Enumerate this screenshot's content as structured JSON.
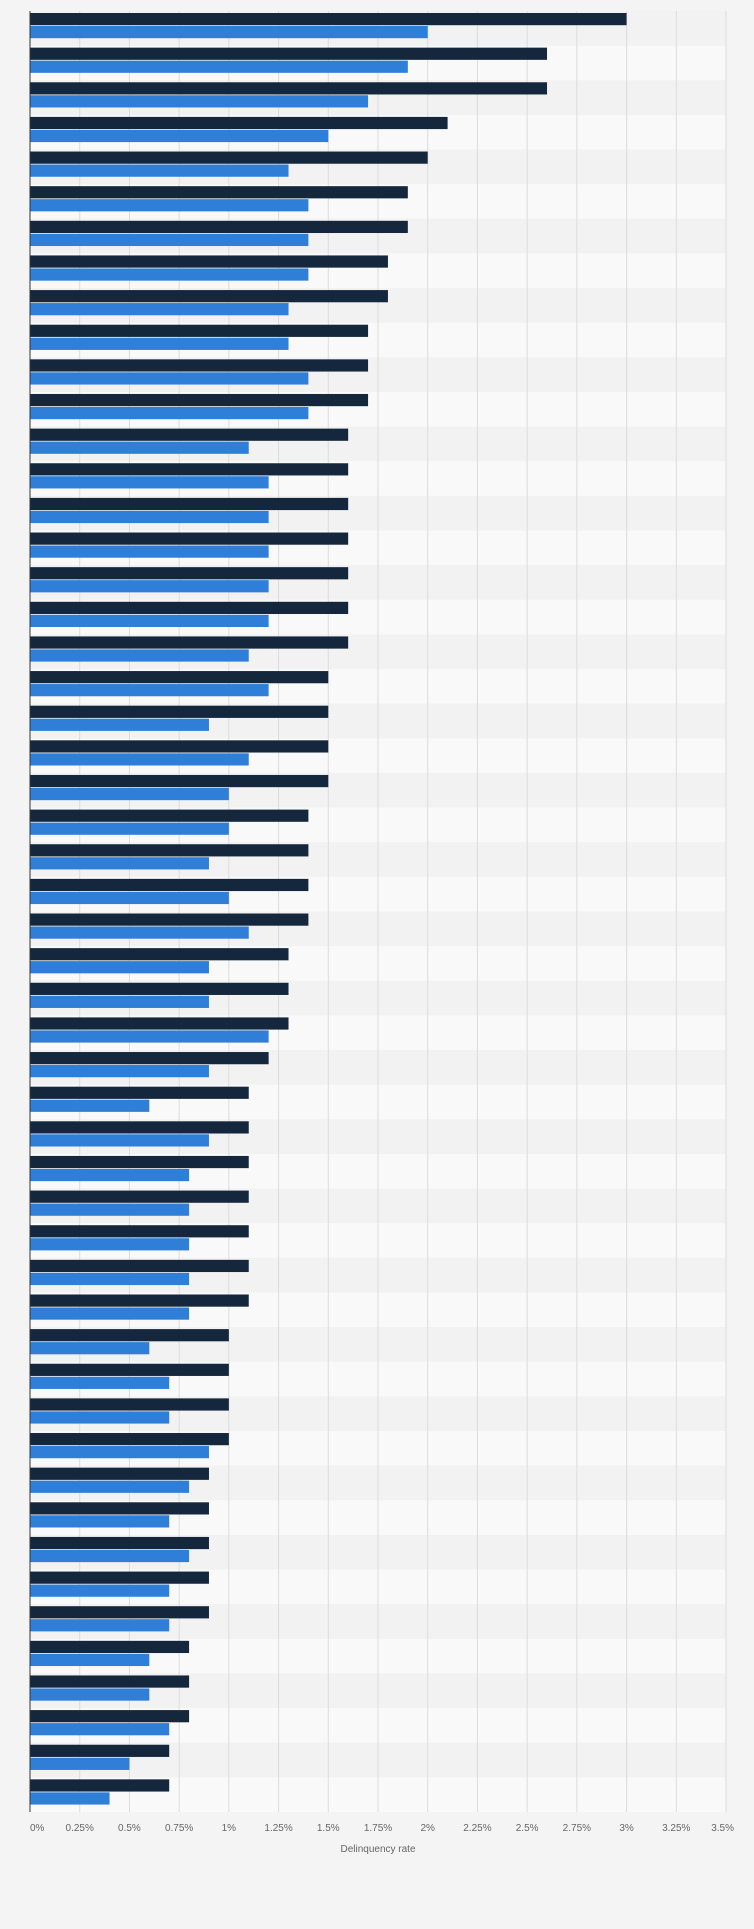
{
  "chart_data": {
    "type": "bar",
    "orientation": "horizontal",
    "xlabel": "Delinquency rate",
    "xlim": [
      0,
      3.5
    ],
    "x_ticks": [
      0,
      0.25,
      0.5,
      0.75,
      1,
      1.25,
      1.5,
      1.75,
      2,
      2.25,
      2.5,
      2.75,
      3,
      3.25,
      3.5
    ],
    "x_tick_labels": [
      "0%",
      "0.25%",
      "0.5%",
      "0.75%",
      "1%",
      "1.25%",
      "1.5%",
      "1.75%",
      "2%",
      "2.25%",
      "2.5%",
      "2.75%",
      "3%",
      "3.25%",
      "3.5%"
    ],
    "grid": true,
    "legend": "none",
    "series": [
      {
        "color": "#14273d",
        "values": [
          3.0,
          2.6,
          2.6,
          2.1,
          2.0,
          1.9,
          1.9,
          1.8,
          1.8,
          1.7,
          1.7,
          1.7,
          1.6,
          1.6,
          1.6,
          1.6,
          1.6,
          1.6,
          1.6,
          1.5,
          1.5,
          1.5,
          1.5,
          1.4,
          1.4,
          1.4,
          1.4,
          1.3,
          1.3,
          1.3,
          1.2,
          1.1,
          1.1,
          1.1,
          1.1,
          1.1,
          1.1,
          1.1,
          1.0,
          1.0,
          1.0,
          1.0,
          0.9,
          0.9,
          0.9,
          0.9,
          0.9,
          0.8,
          0.8,
          0.8,
          0.7,
          0.7
        ]
      },
      {
        "color": "#2f7ed8",
        "values": [
          2.0,
          1.9,
          1.7,
          1.5,
          1.3,
          1.4,
          1.4,
          1.4,
          1.3,
          1.3,
          1.4,
          1.4,
          1.1,
          1.2,
          1.2,
          1.2,
          1.2,
          1.2,
          1.1,
          1.2,
          0.9,
          1.1,
          1.0,
          1.0,
          0.9,
          1.0,
          1.1,
          0.9,
          0.9,
          1.2,
          0.9,
          0.6,
          0.9,
          0.8,
          0.8,
          0.8,
          0.8,
          0.8,
          0.6,
          0.7,
          0.7,
          0.9,
          0.8,
          0.7,
          0.8,
          0.7,
          0.7,
          0.6,
          0.6,
          0.7,
          0.5,
          0.4
        ]
      }
    ]
  }
}
